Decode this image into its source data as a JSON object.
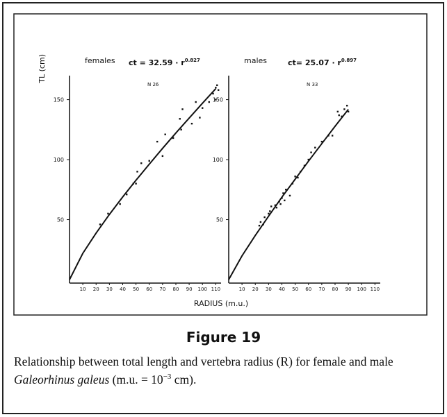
{
  "y_label": "TL (cm)",
  "x_label": "RADIUS (m.u.)",
  "figure_label": "Figure 19",
  "caption": [
    "Relationship between total length and vertebra radius (R) for female and male ",
    "Galeorhinus galeus",
    " (m.u. = 10",
    "−3",
    " cm)."
  ],
  "chart_data": [
    {
      "type": "scatter",
      "title": "females",
      "equation": "ct = 32.59 · r",
      "exponent": "0.827",
      "n_label": "N 26",
      "xlim": [
        0,
        114
      ],
      "ylim": [
        0,
        170
      ],
      "xticks": [
        10,
        20,
        30,
        40,
        50,
        60,
        70,
        80,
        90,
        100,
        110
      ],
      "yticks": [
        50,
        100,
        150
      ],
      "x": [
        23,
        29,
        38,
        43,
        48,
        50,
        51,
        54,
        60,
        66,
        70,
        72,
        78,
        83,
        84,
        85,
        92,
        95,
        98,
        100,
        105,
        108,
        110,
        110,
        111,
        112
      ],
      "y": [
        46,
        55,
        63,
        71,
        80,
        80,
        90,
        97,
        99,
        115,
        103,
        121,
        118,
        134,
        125,
        142,
        130,
        148,
        135,
        143,
        148,
        155,
        150,
        160,
        162,
        158
      ],
      "fit": {
        "x": [
          0,
          10,
          20,
          30,
          40,
          50,
          60,
          70,
          80,
          90,
          100,
          110
        ],
        "y": [
          0,
          21.9,
          38.8,
          54.3,
          68.9,
          82.8,
          96.2,
          109.4,
          122.2,
          134.6,
          147,
          159.1
        ]
      }
    },
    {
      "type": "scatter",
      "title": "males",
      "equation": "ct= 25.07 · r",
      "exponent": "0.897",
      "n_label": "N 33",
      "xlim": [
        0,
        114
      ],
      "ylim": [
        0,
        170
      ],
      "xticks": [
        10,
        20,
        30,
        40,
        50,
        60,
        70,
        80,
        90,
        100,
        110
      ],
      "yticks": [
        50,
        100,
        150
      ],
      "x": [
        23,
        24,
        26,
        27,
        30,
        31,
        32,
        35,
        36,
        38,
        39,
        40,
        41,
        42,
        43,
        46,
        48,
        50,
        52,
        54,
        57,
        60,
        62,
        65,
        70,
        75,
        78,
        82,
        83,
        85,
        87,
        89,
        90
      ],
      "y": [
        45,
        48,
        46,
        52,
        55,
        57,
        61,
        62,
        60,
        65,
        63,
        68,
        72,
        66,
        75,
        70,
        80,
        86,
        85,
        90,
        95,
        100,
        106,
        110,
        115,
        120,
        120,
        140,
        137,
        136,
        142,
        145,
        140
      ],
      "fit": {
        "x": [
          0,
          10,
          20,
          30,
          40,
          50,
          60,
          70,
          80,
          90
        ],
        "y": [
          0,
          19.8,
          36.8,
          52.9,
          68.7,
          83.7,
          98.7,
          113.3,
          127.8,
          141.9
        ]
      }
    }
  ]
}
